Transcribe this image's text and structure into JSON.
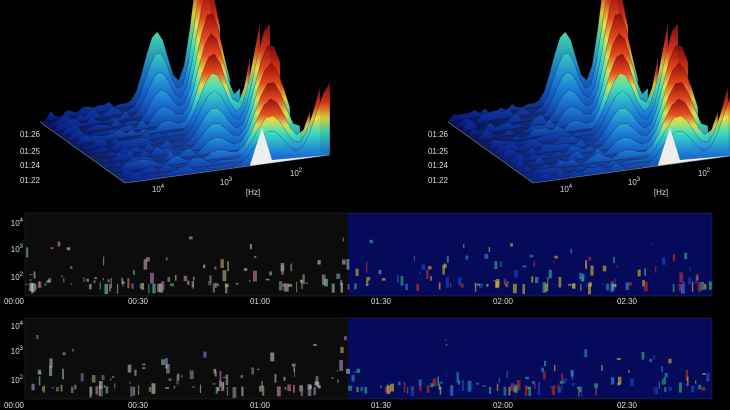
{
  "plots3d": [
    {
      "time_labels": [
        "01:26",
        "01:25",
        "01:24",
        "01:22"
      ],
      "freq_labels": [
        {
          "base": "10",
          "exp": "4"
        },
        {
          "base": "10",
          "exp": "3"
        },
        {
          "base": "10",
          "exp": "2"
        }
      ],
      "unit": "[Hz]"
    },
    {
      "time_labels": [
        "01:26",
        "01:25",
        "01:24",
        "01:22"
      ],
      "freq_labels": [
        {
          "base": "10",
          "exp": "4"
        },
        {
          "base": "10",
          "exp": "3"
        },
        {
          "base": "10",
          "exp": "2"
        }
      ],
      "unit": "[Hz]"
    }
  ],
  "spectrograms": [
    {
      "freq_labels": [
        {
          "base": "10",
          "exp": "4"
        },
        {
          "base": "10",
          "exp": "3"
        },
        {
          "base": "10",
          "exp": "2"
        }
      ],
      "time_labels": [
        "00:00",
        "00:30",
        "01:00",
        "01:30",
        "02:00",
        "02:30"
      ]
    },
    {
      "freq_labels": [
        {
          "base": "10",
          "exp": "4"
        },
        {
          "base": "10",
          "exp": "3"
        },
        {
          "base": "10",
          "exp": "2"
        }
      ],
      "time_labels": [
        "00:00",
        "00:30",
        "01:00",
        "01:30",
        "02:00",
        "02:30"
      ]
    }
  ]
}
